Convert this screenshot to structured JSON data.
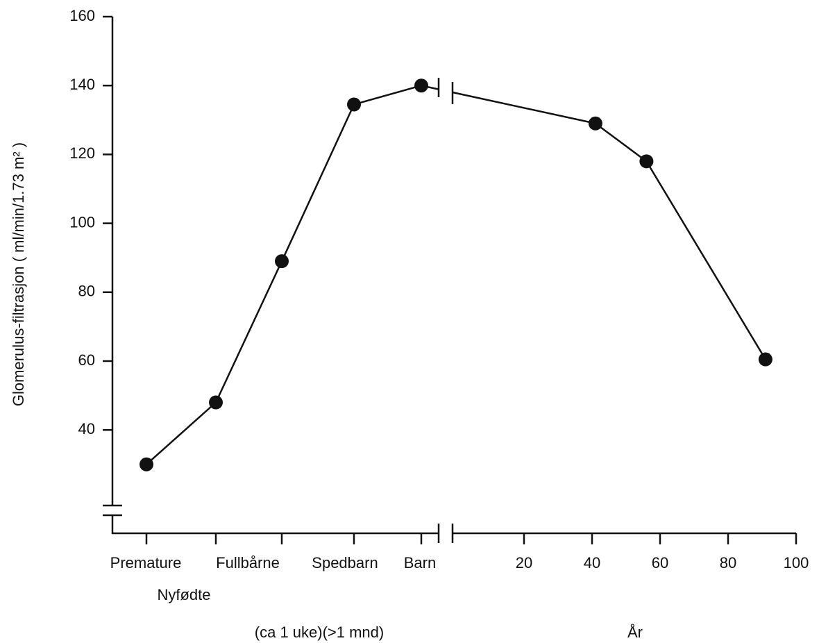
{
  "chart_data": [
    {
      "type": "line",
      "y_label": "Glomerulus-filtrasjon ( ml/min/1.73 m² )",
      "ylim": [
        10,
        160
      ],
      "yticks": [
        40,
        60,
        80,
        100,
        120,
        140,
        160
      ],
      "categories": [
        "Premature",
        "Fullbårne",
        null,
        "Spedbarn",
        "Barn"
      ],
      "values": [
        30,
        48,
        89,
        134.5,
        140
      ],
      "annotations": [
        "Nyfødte",
        "(ca 1 uke)(>1 mnd)"
      ],
      "color": "#111111"
    },
    {
      "type": "line",
      "x_label": "År",
      "xlim": [
        0,
        100
      ],
      "xticks": [
        20,
        40,
        60,
        80,
        100
      ],
      "ylim": [
        10,
        160
      ],
      "x": [
        41,
        56,
        91
      ],
      "values": [
        129,
        118,
        60.5
      ],
      "color": "#111111"
    }
  ]
}
